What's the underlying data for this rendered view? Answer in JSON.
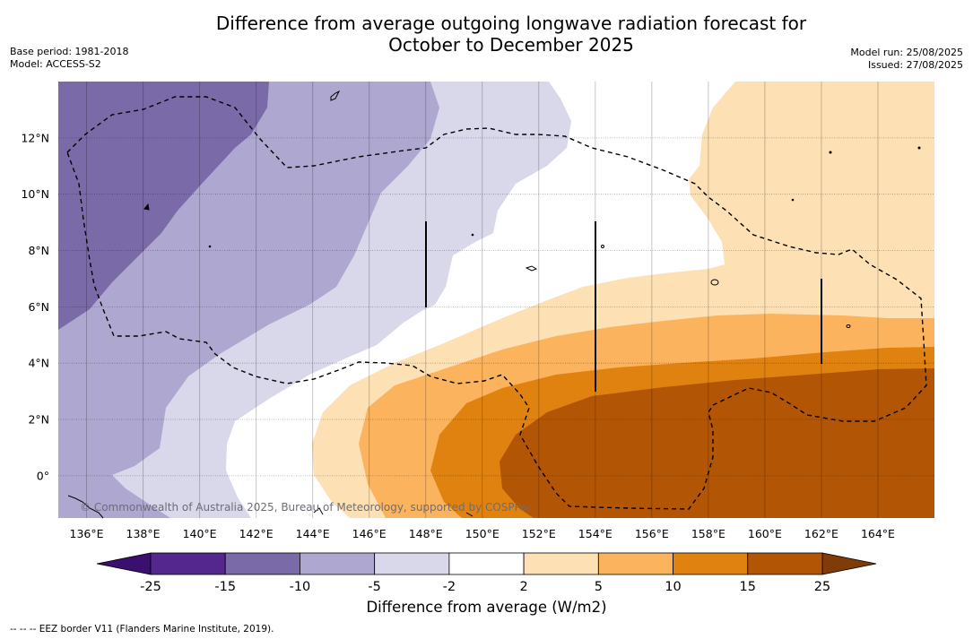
{
  "title_line1": "Difference from average outgoing longwave radiation forecast for",
  "title_line2": "October to December 2025",
  "base_period": "Base period: 1981-2018",
  "model": "Model: ACCESS-S2",
  "model_run": "Model run: 25/08/2025",
  "issued": "Issued: 27/08/2025",
  "copyright": "© Commonwealth of Australia 2025, Bureau of Meteorology, supported by COSPPac",
  "x_ticks": [
    "136°E",
    "138°E",
    "140°E",
    "142°E",
    "144°E",
    "146°E",
    "148°E",
    "150°E",
    "152°E",
    "154°E",
    "156°E",
    "158°E",
    "160°E",
    "162°E",
    "164°E"
  ],
  "y_ticks": [
    "12°N",
    "10°N",
    "8°N",
    "6°N",
    "4°N",
    "2°N",
    "0°"
  ],
  "colorbar": {
    "title": "Difference from average (W/m2)",
    "labels": [
      "-25",
      "-15",
      "-10",
      "-5",
      "-2",
      "2",
      "5",
      "10",
      "15",
      "25"
    ],
    "colors": [
      "#3b0f6f",
      "#54278f",
      "#7b6aa8",
      "#aea8d1",
      "#d8d8ea",
      "#ffffff",
      "#fde0b4",
      "#fbb35e",
      "#e0820f",
      "#b25505",
      "#7f3b08"
    ]
  },
  "footnote": "--  --  -- EEZ border V11 (Flanders Marine Institute, 2019).",
  "map_data": {
    "lon_range": [
      135,
      166
    ],
    "lat_range": [
      -1.5,
      14
    ],
    "legend_colors": {
      "-15_-10": "#7b6aa8",
      "-10_-5": "#aea8d1",
      "-5_-2": "#d8d8ea",
      "-2_2": "#ffffff",
      "2_5": "#fde0b4",
      "5_10": "#fbb35e",
      "10_15": "#e0820f",
      "15_25": "#b25505"
    }
  }
}
